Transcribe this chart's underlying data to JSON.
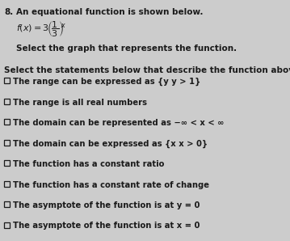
{
  "background_color": "#cccccc",
  "font_color": "#1a1a1a",
  "box_color": "#1a1a1a",
  "q_number": "8.",
  "intro": "An equational function is shown below.",
  "select_graph": "Select the graph that represents the function.",
  "select_statements": "Select the statements below that describe the function above.",
  "checkboxes": [
    "The range can be expressed as {y y > 1}",
    "The range is all real numbers",
    "The domain can be represented as -∞ < x < ∞",
    "The domain can be expressed as {x x > 0}",
    "The function has a constant ratio",
    "The function has a constant rate of change",
    "The asymptote of the function is at y = 0",
    "The asymptote of the function is at x = 0"
  ],
  "fs_header": 7.5,
  "fs_body": 7.2,
  "fs_math": 8.0
}
